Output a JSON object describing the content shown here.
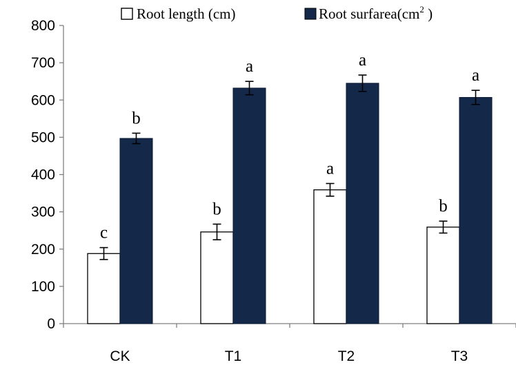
{
  "chart_data": {
    "type": "bar",
    "categories": [
      "CK",
      "T1",
      "T2",
      "T3"
    ],
    "series": [
      {
        "name": "Root length (cm)",
        "values": [
          188,
          246,
          359,
          259
        ],
        "errors": [
          16,
          21,
          17,
          16
        ],
        "letters": [
          "c",
          "b",
          "a",
          "b"
        ],
        "color": "#ffffff"
      },
      {
        "name": "Root surfarea(cm",
        "name_sup": "2",
        "name_suffix": " )",
        "values": [
          497,
          632,
          645,
          607
        ],
        "errors": [
          14,
          18,
          22,
          19
        ],
        "letters": [
          "b",
          "a",
          "a",
          "a"
        ],
        "color": "#14284a"
      }
    ],
    "ylim": [
      0,
      800
    ],
    "yticks": [
      "0",
      "100",
      "200",
      "300",
      "400",
      "500",
      "600",
      "700",
      "800"
    ],
    "xlabel": "",
    "ylabel": "",
    "grid": false,
    "legend": "top"
  }
}
